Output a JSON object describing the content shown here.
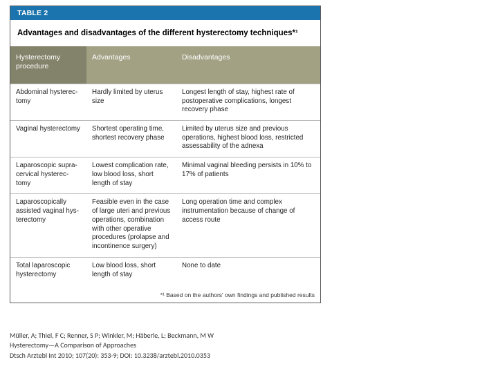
{
  "colors": {
    "headerBar": "#1b74ad",
    "colHeadBg": "#a2a184",
    "colHeadFirstBg": "#83836b"
  },
  "table": {
    "label": "TABLE 2",
    "title": "Advantages and disadvantages of the different hysterectomy techniques*¹",
    "columns": [
      "Hysterectomy procedure",
      "Advantages",
      "Disadvantages"
    ],
    "rows": [
      {
        "proc": "Abdominal hysterec­tomy",
        "adv": "Hardly limited by uterus size",
        "dis": "Longest length of stay, highest rate of postoperative compli­cations, longest recovery phase"
      },
      {
        "proc": "Vaginal hysterec­tomy",
        "adv": "Shortest operating time, shortest recovery phase",
        "dis": "Limited by uterus size and pre­vious operations, highest blood loss, restricted assessability of the adnexa"
      },
      {
        "proc": "Laparoscopic supra­cervical hysterec­tomy",
        "adv": "Lowest complication rate, low blood loss, short length of stay",
        "dis": "Minimal vaginal bleeding persists in 10% to 17% of patients"
      },
      {
        "proc": "Laparoscopically assisted vaginal hys­terectomy",
        "adv": "Feasible even in the case of large uteri and previous operations, combination with other operative procedures (prolapse and inconti­nence surgery)",
        "dis": "Long operation time and complex instrumentation because of change of access route"
      },
      {
        "proc": "Total laparoscopic hysterectomy",
        "adv": "Low blood loss, short length of stay",
        "dis": "None to date"
      }
    ],
    "footnote": "*¹ Based on the authors' own findings and published results"
  },
  "citation": {
    "authors": "Müller, A; Thiel, F C; Renner, S P; Winkler, M; Häberle, L; Beckmann, M W",
    "title": "Hysterectomy—A Comparison of Approaches",
    "ref": "Dtsch Arztebl Int 2010; 107(20): 353-9; DOI: 10.3238/arztebl.2010.0353"
  }
}
